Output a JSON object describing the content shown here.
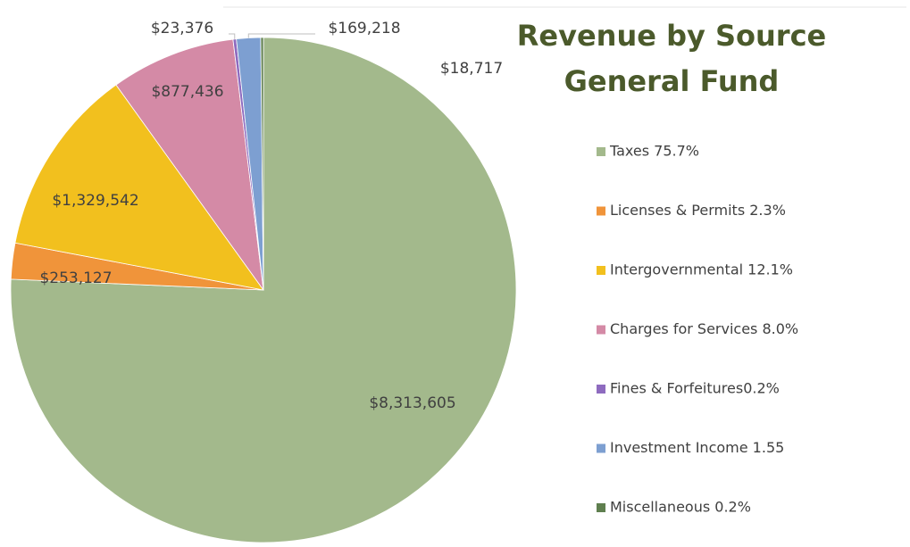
{
  "chart_data": {
    "type": "pie",
    "title": "Revenue by Source",
    "subtitle": "General Fund",
    "series": [
      {
        "name": "Taxes 75.7%",
        "color": "#a3b98c",
        "values": [
          8313605
        ],
        "value_labels": [
          "$8,313,605"
        ]
      },
      {
        "name": "Licenses & Permits 2.3%",
        "color": "#f0943a",
        "values": [
          253127
        ],
        "value_labels": [
          "$253,127"
        ]
      },
      {
        "name": "Intergovernmental 12.1%",
        "color": "#f2c01e",
        "values": [
          1329542
        ],
        "value_labels": [
          "$1,329,542"
        ]
      },
      {
        "name": "Charges for Services 8.0%",
        "color": "#d48aa6",
        "values": [
          877436
        ],
        "value_labels": [
          "$877,436"
        ]
      },
      {
        "name": "Fines & Forfeitures0.2%",
        "color": "#8e6bbf",
        "values": [
          23376
        ],
        "value_labels": [
          "$23,376"
        ]
      },
      {
        "name": "Investment Income 1.55",
        "color": "#7d9fd1",
        "values": [
          169218
        ],
        "value_labels": [
          "$169,218"
        ]
      },
      {
        "name": "Miscellaneous 0.2%",
        "color": "#5f7f4f",
        "values": [
          18717
        ],
        "value_labels": [
          "$18,717"
        ]
      }
    ],
    "legend": "right"
  }
}
